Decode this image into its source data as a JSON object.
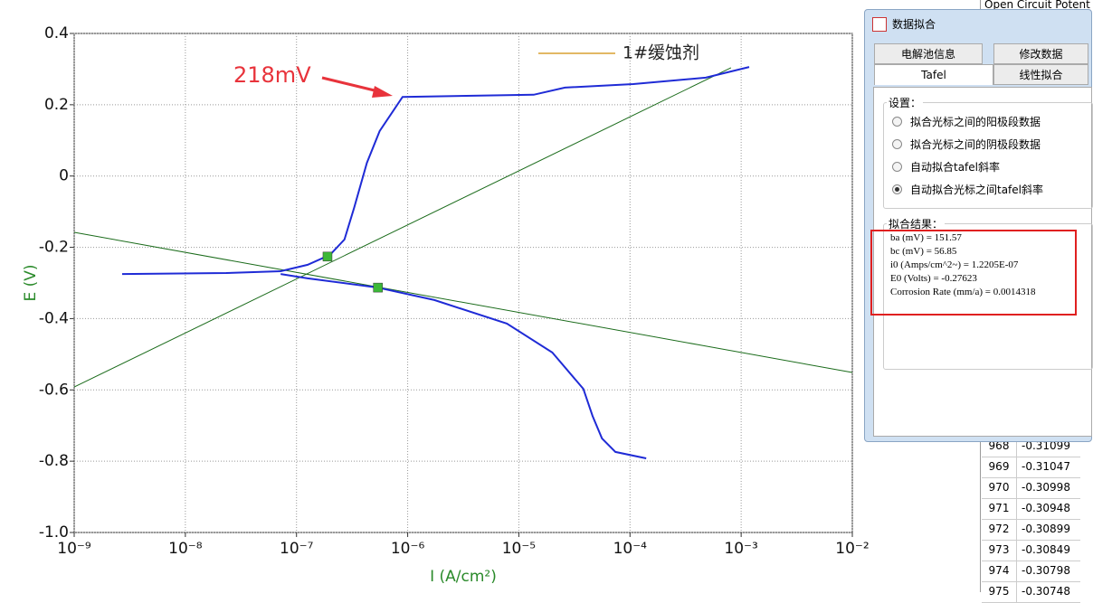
{
  "chart_data": {
    "type": "line",
    "x_label": "I (A/cm²)",
    "y_label": "E (V)",
    "xscale": "log",
    "xlim": [
      1e-09,
      0.01
    ],
    "xticks": [
      {
        "value": 1e-09,
        "label": "10⁻⁹"
      },
      {
        "value": 1e-08,
        "label": "10⁻⁸"
      },
      {
        "value": 1e-07,
        "label": "10⁻⁷"
      },
      {
        "value": 1e-06,
        "label": "10⁻⁶"
      },
      {
        "value": 1e-05,
        "label": "10⁻⁵"
      },
      {
        "value": 0.0001,
        "label": "10⁻⁴"
      },
      {
        "value": 0.001,
        "label": "10⁻³"
      },
      {
        "value": 0.01,
        "label": "10⁻²"
      }
    ],
    "ylim": [
      -1,
      0.4
    ],
    "yticks": [
      {
        "value": -1,
        "label": "-1.0"
      },
      -0.8,
      -0.6,
      -0.4,
      -0.2,
      0,
      0.2,
      0.4
    ],
    "grid": true,
    "legend": "top-right",
    "series": [
      {
        "name": "1#缓蚀剂",
        "color": "#1f2bd6",
        "legend_color": "#d9a030",
        "x": [
          2.7e-09,
          2.33e-08,
          7.2e-08,
          1.26e-07,
          2e-07,
          2.7e-07,
          3.3e-07,
          4.3e-07,
          5.6e-07,
          9e-07,
          1.36e-05,
          2.6e-05,
          0.000107,
          0.00048,
          0.00118,
          null,
          7.2e-08,
          1.26e-07,
          5.4e-07,
          1.74e-06,
          7.8e-06,
          2e-05,
          3.8e-05,
          4.6e-05,
          5.6e-05,
          7.4e-05,
          0.00014
        ],
        "values": [
          -0.275,
          -0.272,
          -0.267,
          -0.249,
          -0.221,
          -0.178,
          -0.089,
          0.037,
          0.126,
          0.222,
          0.228,
          0.248,
          0.258,
          0.276,
          0.306,
          null,
          -0.275,
          -0.287,
          -0.313,
          -0.348,
          -0.414,
          -0.495,
          -0.597,
          -0.673,
          -0.736,
          -0.774,
          -0.792
        ]
      }
    ],
    "fit_lines": [
      {
        "color": "#1a6b1a",
        "x": [
          1e-09,
          0.00081
        ],
        "values": [
          -0.592,
          0.304
        ]
      },
      {
        "color": "#1a6b1a",
        "x": [
          1e-09,
          0.01
        ],
        "values": [
          -0.158,
          -0.551
        ]
      }
    ],
    "markers": {
      "color": "#3cb838",
      "x": [
        1.9e-07,
        5.4e-07
      ],
      "values": [
        -0.226,
        -0.313
      ]
    },
    "annotation": {
      "text": "218mV",
      "color": "#e8333b"
    }
  },
  "background_header": "Open Circuit Potent",
  "dialog": {
    "title": "数据拟合",
    "tabs": [
      "电解池信息",
      "修改数据",
      "Tafel",
      "线性拟合"
    ],
    "active_tab": 2,
    "settings_label": "设置：",
    "options": [
      "拟合光标之间的阳极段数据",
      "拟合光标之间的阴极段数据",
      "自动拟合tafel斜率",
      "自动拟合光标之间tafel斜率"
    ],
    "selected_option": 3,
    "results_label": "拟合结果：",
    "results": [
      "ba (mV) = 151.57",
      "bc (mV) = 56.85",
      "i0 (Amps/cm^2~) = 1.2205E-07",
      "E0 (Volts) = -0.27623",
      "Corrosion Rate (mm/a) = 0.0014318"
    ]
  },
  "table": {
    "rows": [
      [
        "968",
        "-0.31099"
      ],
      [
        "969",
        "-0.31047"
      ],
      [
        "970",
        "-0.30998"
      ],
      [
        "971",
        "-0.30948"
      ],
      [
        "972",
        "-0.30899"
      ],
      [
        "973",
        "-0.30849"
      ],
      [
        "974",
        "-0.30798"
      ],
      [
        "975",
        "-0.30748"
      ]
    ]
  }
}
